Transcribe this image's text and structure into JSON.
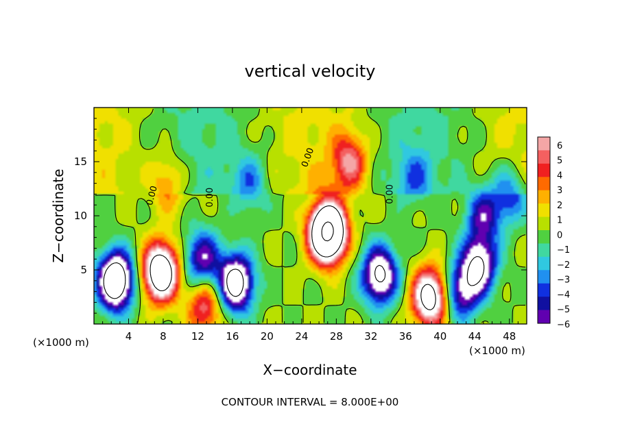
{
  "chart_data": {
    "type": "heatmap",
    "title": "vertical velocity",
    "xlabel": "X−coordinate",
    "ylabel": "Z−coordinate",
    "x_unit_left": "(×1000 m)",
    "x_unit_right": "(×1000 m)",
    "footer": "CONTOUR INTERVAL = 8.000E+00",
    "xlim": [
      0,
      50
    ],
    "ylim": [
      0,
      20
    ],
    "x_ticks": [
      4,
      8,
      12,
      16,
      20,
      24,
      28,
      32,
      36,
      40,
      44,
      48
    ],
    "y_ticks": [
      5,
      10,
      15
    ],
    "contour_labels": [
      "0.00",
      "0.00",
      "0.00",
      "0.00",
      "0.00"
    ],
    "colorbar": {
      "tick_labels": [
        "6",
        "5",
        "4",
        "3",
        "2",
        "1",
        "0",
        "−1",
        "−2",
        "−3",
        "−4",
        "−5",
        "−6"
      ],
      "colors": [
        "#f4a6a6",
        "#f46060",
        "#f02020",
        "#ff6a00",
        "#ffb000",
        "#f0e000",
        "#b8e000",
        "#50d040",
        "#40d8a0",
        "#30c8e0",
        "#2090f0",
        "#1030e0",
        "#1010a0",
        "#6000b0"
      ],
      "min": -6,
      "max": 6
    },
    "features": [
      {
        "x": 2.5,
        "z": 4.0,
        "value": -12
      },
      {
        "x": 7.7,
        "z": 4.8,
        "value": 12
      },
      {
        "x": 12.8,
        "z": 1.6,
        "value": 5
      },
      {
        "x": 12.5,
        "z": 6.0,
        "value": -6
      },
      {
        "x": 16.4,
        "z": 3.8,
        "value": -10
      },
      {
        "x": 8.5,
        "z": 13.0,
        "value": 3
      },
      {
        "x": 18.0,
        "z": 13.0,
        "value": -3
      },
      {
        "x": 27.0,
        "z": 8.5,
        "value": 18
      },
      {
        "x": 29.5,
        "z": 15.0,
        "value": 5
      },
      {
        "x": 33.0,
        "z": 4.5,
        "value": -9
      },
      {
        "x": 38.8,
        "z": 2.5,
        "value": 10
      },
      {
        "x": 42.5,
        "z": 3.0,
        "value": -6
      },
      {
        "x": 45.0,
        "z": 10.0,
        "value": -5
      },
      {
        "x": 44.5,
        "z": 5.5,
        "value": -8
      },
      {
        "x": 37.0,
        "z": 13.5,
        "value": -2.5
      },
      {
        "x": 48.0,
        "z": 12.0,
        "value": -4
      }
    ]
  }
}
